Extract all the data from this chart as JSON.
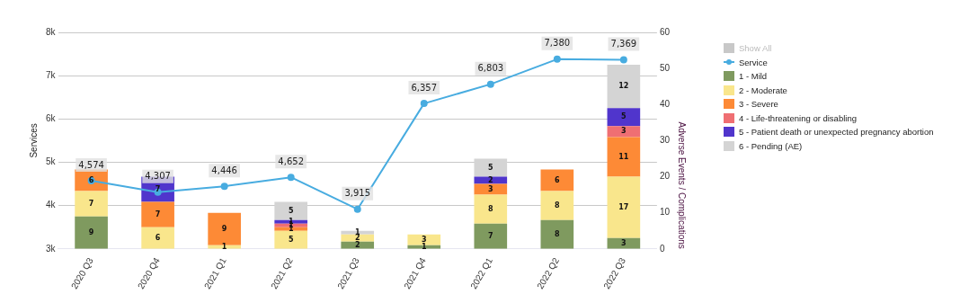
{
  "chart_data": {
    "type": "bar",
    "stacked": true,
    "categories": [
      "2020 Q3",
      "2020 Q4",
      "2021 Q1",
      "2021 Q2",
      "2021 Q3",
      "2021 Q4",
      "2022 Q1",
      "2022 Q2",
      "2022 Q3"
    ],
    "ylabel": "Services",
    "y2label": "Adverse Events / Complications",
    "ylim": [
      3000,
      8000
    ],
    "yticks": [
      {
        "value": 3000,
        "label": "3k"
      },
      {
        "value": 4000,
        "label": "4k"
      },
      {
        "value": 5000,
        "label": "5k"
      },
      {
        "value": 6000,
        "label": "6k"
      },
      {
        "value": 7000,
        "label": "7k"
      },
      {
        "value": 8000,
        "label": "8k"
      }
    ],
    "y2lim": [
      0,
      60
    ],
    "y2ticks": [
      0,
      10,
      20,
      30,
      40,
      50,
      60
    ],
    "grid": "y",
    "legend": "right",
    "marker": "circle",
    "data_labels": true,
    "annotations": [
      "Show All"
    ],
    "series": [
      {
        "name": "Service",
        "type": "line",
        "axis": "y",
        "color": "#48ace0",
        "values": [
          4574,
          4307,
          4446,
          4652,
          3915,
          6357,
          6803,
          7380,
          7369
        ],
        "value_labels": [
          "4,574",
          "4,307",
          "4,446",
          "4,652",
          "3,915",
          "6,357",
          "6,803",
          "7,380",
          "7,369"
        ]
      },
      {
        "name": "1 - Mild",
        "axis": "y2",
        "color": "#7f9a5f",
        "values": [
          9,
          null,
          null,
          null,
          2,
          1,
          7,
          8,
          3
        ]
      },
      {
        "name": "2 - Moderate",
        "axis": "y2",
        "color": "#f9e68c",
        "values": [
          7,
          6,
          1,
          5,
          2,
          3,
          8,
          8,
          17
        ]
      },
      {
        "name": "3 - Severe",
        "axis": "y2",
        "color": "#fd8a36",
        "values": [
          6,
          7,
          9,
          1,
          null,
          null,
          3,
          6,
          11
        ]
      },
      {
        "name": "4 - Life-threatening or disabling",
        "axis": "y2",
        "color": "#ef6f73",
        "values": [
          null,
          null,
          null,
          1,
          null,
          null,
          null,
          null,
          3
        ]
      },
      {
        "name": "5 - Patient death or unexpected pregnancy abortion",
        "axis": "y2",
        "color": "#5035cc",
        "values": [
          null,
          7,
          null,
          1,
          null,
          null,
          2,
          null,
          5
        ]
      },
      {
        "name": "6 - Pending (AE)",
        "axis": "y2",
        "color": "#d4d4d4",
        "values": [
          null,
          null,
          null,
          5,
          1,
          null,
          5,
          null,
          12
        ]
      }
    ]
  }
}
